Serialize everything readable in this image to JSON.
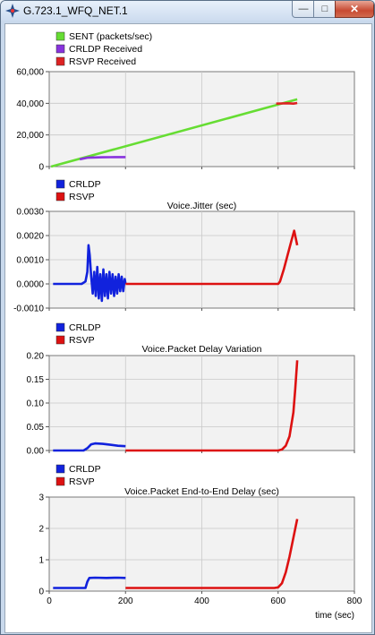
{
  "window": {
    "title": "G.723.1_WFQ_NET.1",
    "app_icon": "opnet-star-icon",
    "controls": {
      "minimize": "—",
      "maximize": "□",
      "close": "✕"
    }
  },
  "colors": {
    "sent": "#66dd33",
    "crldp_received": "#8833dd",
    "rsvp_received": "#dd2222",
    "crldp": "#1122dd",
    "rsvp": "#dd1111",
    "plot_bg": "#f2f2f2"
  },
  "x_axis": {
    "label": "time (sec)",
    "min": 0,
    "max": 800,
    "ticks": [
      0,
      200,
      400,
      600,
      800
    ],
    "tick_labels": [
      "0",
      "200",
      "400",
      "600",
      "800"
    ]
  },
  "chart_data": [
    {
      "type": "line",
      "title": "",
      "legend": [
        "SENT (packets/sec)",
        "CRLDP Received",
        "RSVP Received"
      ],
      "xlabel": "",
      "ylabel": "",
      "xlim": [
        0,
        800
      ],
      "ylim": [
        0,
        60000
      ],
      "yticks": [
        0,
        20000,
        40000,
        60000
      ],
      "ytick_labels": [
        "0",
        "20,000",
        "40,000",
        "60,000"
      ],
      "grid": true,
      "series": [
        {
          "name": "SENT (packets/sec)",
          "color": "#66dd33",
          "x": [
            5,
            650
          ],
          "y": [
            0,
            42500
          ]
        },
        {
          "name": "CRLDP Received",
          "color": "#8833dd",
          "x": [
            80,
            100,
            120,
            140,
            160,
            180,
            200
          ],
          "y": [
            4600,
            5600,
            5800,
            5900,
            5950,
            6000,
            6000
          ]
        },
        {
          "name": "RSVP Received",
          "color": "#dd2222",
          "x": [
            595,
            610,
            625,
            640,
            650
          ],
          "y": [
            39800,
            39900,
            40000,
            39800,
            40200
          ]
        }
      ]
    },
    {
      "type": "line",
      "title": "Voice.Jitter (sec)",
      "legend": [
        "CRLDP",
        "RSVP"
      ],
      "xlabel": "",
      "ylabel": "",
      "xlim": [
        0,
        800
      ],
      "ylim": [
        -0.001,
        0.003
      ],
      "yticks": [
        -0.001,
        0,
        0.001,
        0.002,
        0.003
      ],
      "ytick_labels": [
        "-0.0010",
        "0.0000",
        "0.0010",
        "0.0020",
        "0.0030"
      ],
      "grid": true,
      "series": [
        {
          "name": "CRLDP",
          "color": "#1122dd",
          "x": [
            10,
            60,
            85,
            95,
            100,
            103,
            106,
            110,
            114,
            118,
            122,
            126,
            130,
            134,
            138,
            142,
            146,
            150,
            154,
            158,
            162,
            166,
            170,
            174,
            178,
            182,
            186,
            190,
            194,
            198,
            200
          ],
          "y": [
            0,
            0,
            0,
            0.0001,
            0.0005,
            0.0016,
            0.0012,
            0.0003,
            -0.0004,
            0.0005,
            -0.0005,
            0.0007,
            -0.0006,
            0.0004,
            -0.0007,
            0.0006,
            -0.0005,
            0.0004,
            -0.0006,
            0.0005,
            -0.0004,
            0.0004,
            -0.0005,
            0.0003,
            -0.0004,
            0.0004,
            -0.0003,
            0.0003,
            -0.0003,
            0.0002,
            0
          ]
        },
        {
          "name": "RSVP",
          "color": "#dd1111",
          "x": [
            200,
            400,
            600,
            605,
            615,
            625,
            635,
            642,
            650
          ],
          "y": [
            0,
            0,
            0,
            0.0001,
            0.0006,
            0.0012,
            0.0018,
            0.0022,
            0.0016
          ]
        }
      ]
    },
    {
      "type": "line",
      "title": "Voice.Packet Delay Variation",
      "legend": [
        "CRLDP",
        "RSVP"
      ],
      "xlabel": "",
      "ylabel": "",
      "xlim": [
        0,
        800
      ],
      "ylim": [
        0,
        0.2
      ],
      "yticks": [
        0,
        0.05,
        0.1,
        0.15,
        0.2
      ],
      "ytick_labels": [
        "0.00",
        "0.05",
        "0.10",
        "0.15",
        "0.20"
      ],
      "grid": true,
      "series": [
        {
          "name": "CRLDP",
          "color": "#1122dd",
          "x": [
            10,
            90,
            100,
            110,
            120,
            140,
            160,
            180,
            200
          ],
          "y": [
            0,
            0,
            0.005,
            0.013,
            0.015,
            0.014,
            0.012,
            0.01,
            0.009
          ]
        },
        {
          "name": "RSVP",
          "color": "#dd1111",
          "x": [
            200,
            400,
            600,
            610,
            620,
            630,
            640,
            645,
            650
          ],
          "y": [
            0,
            0,
            0,
            0.002,
            0.01,
            0.03,
            0.08,
            0.13,
            0.19
          ]
        }
      ]
    },
    {
      "type": "line",
      "title": "Voice.Packet End-to-End Delay (sec)",
      "legend": [
        "CRLDP",
        "RSVP"
      ],
      "xlabel": "time (sec)",
      "ylabel": "",
      "xlim": [
        0,
        800
      ],
      "ylim": [
        0,
        3
      ],
      "yticks": [
        0,
        1,
        2,
        3
      ],
      "ytick_labels": [
        "0",
        "1",
        "2",
        "3"
      ],
      "grid": true,
      "series": [
        {
          "name": "CRLDP",
          "color": "#1122dd",
          "x": [
            10,
            90,
            95,
            100,
            105,
            120,
            150,
            180,
            200
          ],
          "y": [
            0.1,
            0.1,
            0.1,
            0.3,
            0.42,
            0.43,
            0.42,
            0.43,
            0.42
          ]
        },
        {
          "name": "RSVP",
          "color": "#dd1111",
          "x": [
            200,
            400,
            590,
            600,
            610,
            620,
            630,
            640,
            650
          ],
          "y": [
            0.1,
            0.1,
            0.1,
            0.12,
            0.25,
            0.6,
            1.1,
            1.7,
            2.3
          ]
        }
      ]
    }
  ]
}
